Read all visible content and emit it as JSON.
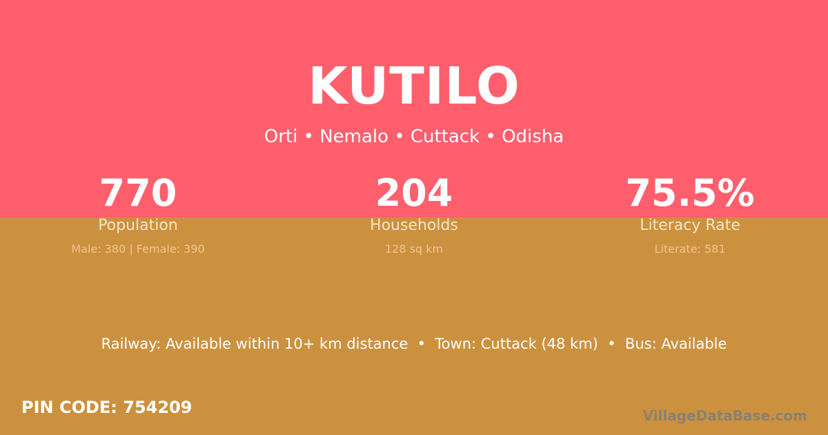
{
  "colors": {
    "top_bg": "#ff5f6d",
    "bottom_bg": "#cc913f"
  },
  "village": {
    "name": "KUTILO",
    "location": "Orti • Nemalo • Cuttack • Odisha"
  },
  "stats": [
    {
      "value": "770",
      "label": "Population",
      "detail": "Male: 380 | Female: 390"
    },
    {
      "value": "204",
      "label": "Households",
      "detail": "128 sq km"
    },
    {
      "value": "75.5%",
      "label": "Literacy Rate",
      "detail": "Literate: 581"
    }
  ],
  "transport": "Railway: Available within 10+ km distance  •  Town: Cuttack (48 km)  •  Bus: Available",
  "pin": "PIN CODE: 754209",
  "brand": "VillageDataBase.com"
}
